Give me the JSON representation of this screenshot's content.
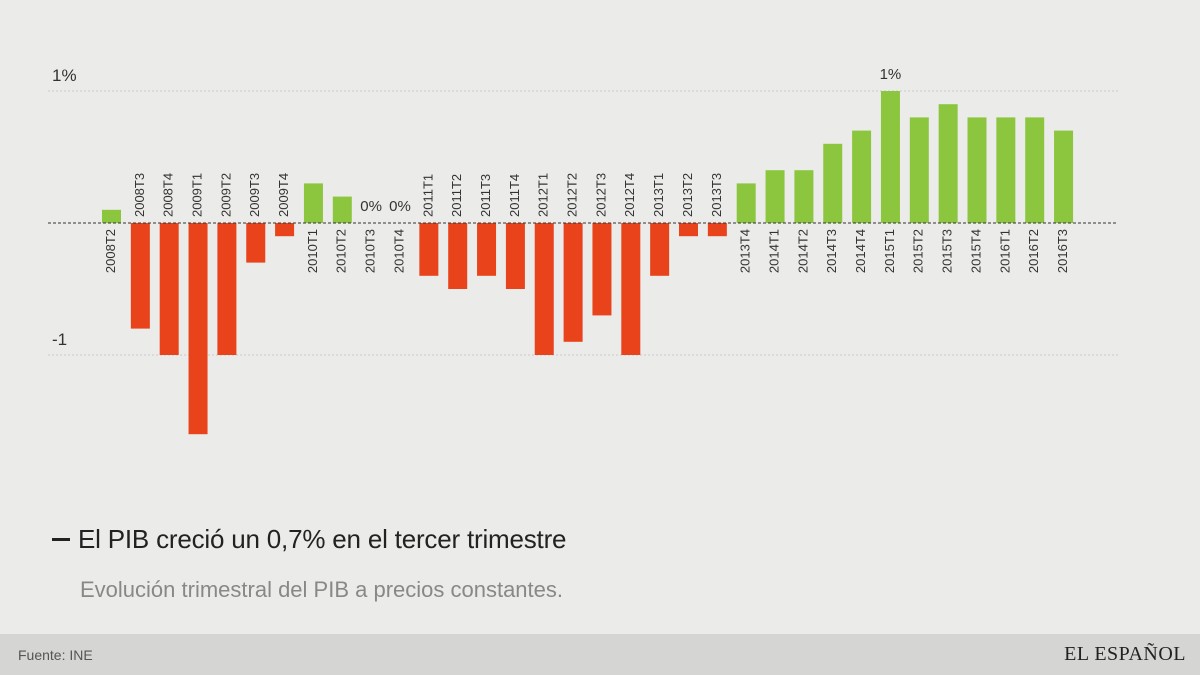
{
  "header": {
    "title": "El PIB creció un 0,7% en el tercer trimestre",
    "subtitle": "Evolución trimestral del PIB a precios constantes."
  },
  "footer": {
    "source": "Fuente: INE",
    "logo": "EL ESPAÑOL"
  },
  "colors": {
    "positive": "#8cc63e",
    "negative": "#e8431a",
    "grid": "#c8c8c8",
    "zero_line": "#333333",
    "text": "#333333"
  },
  "chart_data": {
    "type": "bar",
    "ylim": [
      -1.6,
      1.0
    ],
    "grid": true,
    "y_gridlines": [
      {
        "value": 1,
        "label": "1%"
      },
      {
        "value": -1,
        "label": "-1"
      }
    ],
    "categories": [
      "2008T2",
      "2008T3",
      "2008T4",
      "2009T1",
      "2009T2",
      "2009T3",
      "2009T4",
      "2010T1",
      "2010T2",
      "2010T3",
      "2010T4",
      "2011T1",
      "2011T2",
      "2011T3",
      "2011T4",
      "2012T1",
      "2012T2",
      "2012T3",
      "2012T4",
      "2013T1",
      "2013T2",
      "2013T3",
      "2013T4",
      "2014T1",
      "2014T2",
      "2014T3",
      "2014T4",
      "2015T1",
      "2015T2",
      "2015T3",
      "2015T4",
      "2016T1",
      "2016T2",
      "2016T3"
    ],
    "values": [
      0.1,
      -0.8,
      -1.0,
      -1.6,
      -1.0,
      -0.3,
      -0.1,
      0.3,
      0.2,
      0.0,
      0.0,
      -0.4,
      -0.5,
      -0.4,
      -0.5,
      -1.0,
      -0.9,
      -0.7,
      -1.0,
      -0.4,
      -0.1,
      -0.1,
      0.3,
      0.4,
      0.4,
      0.6,
      0.7,
      1.0,
      0.8,
      0.9,
      0.8,
      0.8,
      0.8,
      0.7
    ],
    "annotations": [
      {
        "category": "2010T3",
        "label": "0%"
      },
      {
        "category": "2010T4",
        "label": "0%"
      },
      {
        "category": "2015T1",
        "label": "1%"
      }
    ]
  }
}
